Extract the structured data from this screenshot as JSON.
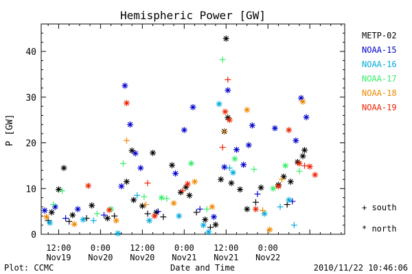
{
  "chart_data": {
    "type": "scatter",
    "title": "Hemispheric Power [GW]",
    "xlabel": "Date and Time",
    "ylabel": "P [GW]",
    "ylim": [
      0,
      46
    ],
    "yticks": [
      0,
      10,
      20,
      30,
      40
    ],
    "xlim": [
      "2010-11-19T07:00",
      "2010-11-22T22:00"
    ],
    "xticks": [
      {
        "t": "2010-11-19T12:00",
        "time": "12:00",
        "day": "Nov19"
      },
      {
        "t": "2010-11-20T00:00",
        "time": "0:00",
        "day": "Nov20"
      },
      {
        "t": "2010-11-20T12:00",
        "time": "12:00",
        "day": "Nov20"
      },
      {
        "t": "2010-11-21T00:00",
        "time": "0:00",
        "day": "Nov21"
      },
      {
        "t": "2010-11-21T12:00",
        "time": "12:00",
        "day": "Nov21"
      },
      {
        "t": "2010-11-22T00:00",
        "time": "0:00",
        "day": "Nov22"
      }
    ],
    "legend_position": "right",
    "marker_legend": [
      {
        "symbol": "+",
        "label": "south"
      },
      {
        "symbol": "*",
        "label": "north"
      }
    ],
    "series": [
      {
        "name": "METP-02",
        "color": "#000000",
        "points": [
          {
            "x": "2010-11-19T10:00",
            "y": 4.8,
            "m": "*"
          },
          {
            "x": "2010-11-19T12:00",
            "y": 9.8,
            "m": "*"
          },
          {
            "x": "2010-11-19T13:30",
            "y": 14.5,
            "m": "*"
          },
          {
            "x": "2010-11-19T16:00",
            "y": 4.2,
            "m": "*"
          },
          {
            "x": "2010-11-19T21:30",
            "y": 6.3,
            "m": "*"
          },
          {
            "x": "2010-11-20T02:00",
            "y": 3.5,
            "m": "*"
          },
          {
            "x": "2010-11-20T07:30",
            "y": 11.5,
            "m": "*"
          },
          {
            "x": "2010-11-20T09:00",
            "y": 18.3,
            "m": "*"
          },
          {
            "x": "2010-11-20T09:30",
            "y": 7.5,
            "m": "*"
          },
          {
            "x": "2010-11-20T12:00",
            "y": 6.2,
            "m": "*"
          },
          {
            "x": "2010-11-20T15:00",
            "y": 17.8,
            "m": "*"
          },
          {
            "x": "2010-11-20T16:00",
            "y": 4.8,
            "m": "*"
          },
          {
            "x": "2010-11-20T20:30",
            "y": 15.1,
            "m": "*"
          },
          {
            "x": "2010-11-20T23:00",
            "y": 9.2,
            "m": "*"
          },
          {
            "x": "2010-11-21T00:30",
            "y": 10.3,
            "m": "*"
          },
          {
            "x": "2010-11-21T01:30",
            "y": 8.5,
            "m": "*"
          },
          {
            "x": "2010-11-21T06:00",
            "y": 3.2,
            "m": "*"
          },
          {
            "x": "2010-11-21T09:00",
            "y": 2.1,
            "m": "*"
          },
          {
            "x": "2010-11-21T10:30",
            "y": 12.0,
            "m": "*"
          },
          {
            "x": "2010-11-21T11:30",
            "y": 22.5,
            "m": "*"
          },
          {
            "x": "2010-11-21T12:00",
            "y": 42.8,
            "m": "*"
          },
          {
            "x": "2010-11-21T12:30",
            "y": 25.5,
            "m": "*"
          },
          {
            "x": "2010-11-21T13:30",
            "y": 11.2,
            "m": "*"
          },
          {
            "x": "2010-11-21T16:00",
            "y": 9.8,
            "m": "*"
          },
          {
            "x": "2010-11-21T18:00",
            "y": 5.5,
            "m": "*"
          },
          {
            "x": "2010-11-21T22:00",
            "y": 10.2,
            "m": "*"
          },
          {
            "x": "2010-11-22T03:00",
            "y": 10.8,
            "m": "*"
          },
          {
            "x": "2010-11-22T04:30",
            "y": 12.6,
            "m": "*"
          },
          {
            "x": "2010-11-22T06:30",
            "y": 11.5,
            "m": "*"
          },
          {
            "x": "2010-11-22T08:30",
            "y": 15.8,
            "m": "*"
          },
          {
            "x": "2010-11-22T10:00",
            "y": 17.1,
            "m": "*"
          },
          {
            "x": "2010-11-22T10:30",
            "y": 18.4,
            "m": "*"
          },
          {
            "x": "2010-11-19T09:00",
            "y": 3.0,
            "m": "+"
          },
          {
            "x": "2010-11-19T15:00",
            "y": 2.8,
            "m": "+"
          },
          {
            "x": "2010-11-19T20:00",
            "y": 3.5,
            "m": "+"
          },
          {
            "x": "2010-11-20T04:00",
            "y": 4.0,
            "m": "+"
          },
          {
            "x": "2010-11-20T13:30",
            "y": 4.5,
            "m": "+"
          },
          {
            "x": "2010-11-20T18:00",
            "y": 3.8,
            "m": "+"
          },
          {
            "x": "2010-11-21T03:30",
            "y": 4.8,
            "m": "+"
          },
          {
            "x": "2010-11-21T07:30",
            "y": 1.5,
            "m": "+"
          },
          {
            "x": "2010-11-21T20:30",
            "y": 7.0,
            "m": "+"
          },
          {
            "x": "2010-11-22T05:30",
            "y": 6.5,
            "m": "+"
          }
        ]
      },
      {
        "name": "NOAA-15",
        "color": "#0000cc",
        "points": [
          {
            "x": "2010-11-19T08:00",
            "y": 5.2,
            "m": "*"
          },
          {
            "x": "2010-11-19T11:00",
            "y": 6.0,
            "m": "*"
          },
          {
            "x": "2010-11-19T17:30",
            "y": 5.5,
            "m": "*"
          },
          {
            "x": "2010-11-20T06:00",
            "y": 10.5,
            "m": "*"
          },
          {
            "x": "2010-11-20T07:00",
            "y": 32.5,
            "m": "*"
          },
          {
            "x": "2010-11-20T08:30",
            "y": 24.0,
            "m": "*"
          },
          {
            "x": "2010-11-20T10:00",
            "y": 17.7,
            "m": "*"
          },
          {
            "x": "2010-11-20T11:30",
            "y": 14.5,
            "m": "*"
          },
          {
            "x": "2010-11-20T21:30",
            "y": 13.3,
            "m": "*"
          },
          {
            "x": "2010-11-21T00:00",
            "y": 22.8,
            "m": "*"
          },
          {
            "x": "2010-11-21T02:30",
            "y": 27.8,
            "m": "*"
          },
          {
            "x": "2010-11-21T11:30",
            "y": 14.7,
            "m": "*"
          },
          {
            "x": "2010-11-21T12:30",
            "y": 31.5,
            "m": "*"
          },
          {
            "x": "2010-11-21T15:00",
            "y": 18.5,
            "m": "*"
          },
          {
            "x": "2010-11-21T17:00",
            "y": 15.2,
            "m": "*"
          },
          {
            "x": "2010-11-21T18:30",
            "y": 19.5,
            "m": "*"
          },
          {
            "x": "2010-11-21T19:30",
            "y": 23.8,
            "m": "*"
          },
          {
            "x": "2010-11-22T02:00",
            "y": 23.2,
            "m": "*"
          },
          {
            "x": "2010-11-22T08:00",
            "y": 20.5,
            "m": "*"
          },
          {
            "x": "2010-11-22T09:30",
            "y": 29.8,
            "m": "*"
          },
          {
            "x": "2010-11-22T11:00",
            "y": 25.6,
            "m": "*"
          },
          {
            "x": "2010-11-21T08:30",
            "y": 3.8,
            "m": "*"
          },
          {
            "x": "2010-11-19T14:00",
            "y": 3.5,
            "m": "+"
          },
          {
            "x": "2010-11-20T01:00",
            "y": 4.2,
            "m": "+"
          },
          {
            "x": "2010-11-20T16:30",
            "y": 5.0,
            "m": "+"
          },
          {
            "x": "2010-11-21T04:30",
            "y": 5.5,
            "m": "+"
          },
          {
            "x": "2010-11-21T21:00",
            "y": 8.8,
            "m": "+"
          },
          {
            "x": "2010-11-22T07:00",
            "y": 7.2,
            "m": "+"
          }
        ]
      },
      {
        "name": "NOAA-16",
        "color": "#00aadd",
        "points": [
          {
            "x": "2010-11-19T09:30",
            "y": 2.5,
            "m": "*"
          },
          {
            "x": "2010-11-19T19:00",
            "y": 3.2,
            "m": "*"
          },
          {
            "x": "2010-11-20T05:00",
            "y": 0.2,
            "m": "*"
          },
          {
            "x": "2010-11-20T14:00",
            "y": 3.0,
            "m": "*"
          },
          {
            "x": "2010-11-20T22:30",
            "y": 4.0,
            "m": "*"
          },
          {
            "x": "2010-11-21T05:30",
            "y": 2.0,
            "m": "*"
          },
          {
            "x": "2010-11-21T07:00",
            "y": 0.5,
            "m": "*"
          },
          {
            "x": "2010-11-21T10:00",
            "y": 28.5,
            "m": "*"
          },
          {
            "x": "2010-11-21T14:00",
            "y": 13.5,
            "m": "*"
          },
          {
            "x": "2010-11-21T23:00",
            "y": 4.5,
            "m": "*"
          },
          {
            "x": "2010-11-22T06:00",
            "y": 7.5,
            "m": "*"
          },
          {
            "x": "2010-11-22T07:30",
            "y": 2.0,
            "m": "+"
          },
          {
            "x": "2010-11-20T10:30",
            "y": 8.5,
            "m": "+"
          },
          {
            "x": "2010-11-19T22:00",
            "y": 3.0,
            "m": "+"
          },
          {
            "x": "2010-11-21T13:00",
            "y": 14.5,
            "m": "+"
          },
          {
            "x": "2010-11-22T03:30",
            "y": 6.0,
            "m": "+"
          }
        ]
      },
      {
        "name": "NOAA-17",
        "color": "#33ee66",
        "points": [
          {
            "x": "2010-11-19T10:30",
            "y": 6.5,
            "m": "+"
          },
          {
            "x": "2010-11-19T13:00",
            "y": 9.5,
            "m": "+"
          },
          {
            "x": "2010-11-19T23:00",
            "y": 4.5,
            "m": "+"
          },
          {
            "x": "2010-11-20T06:30",
            "y": 15.5,
            "m": "+"
          },
          {
            "x": "2010-11-20T12:30",
            "y": 8.2,
            "m": "+"
          },
          {
            "x": "2010-11-20T19:00",
            "y": 7.8,
            "m": "+"
          },
          {
            "x": "2010-11-21T02:00",
            "y": 15.5,
            "m": "*"
          },
          {
            "x": "2010-11-21T06:30",
            "y": 5.5,
            "m": "+"
          },
          {
            "x": "2010-11-21T11:00",
            "y": 38.2,
            "m": "+"
          },
          {
            "x": "2010-11-21T14:30",
            "y": 16.5,
            "m": "*"
          },
          {
            "x": "2010-11-21T20:00",
            "y": 14.2,
            "m": "+"
          },
          {
            "x": "2010-11-22T01:30",
            "y": 10.0,
            "m": "*"
          },
          {
            "x": "2010-11-22T05:00",
            "y": 15.0,
            "m": "*"
          },
          {
            "x": "2010-11-22T09:00",
            "y": 13.8,
            "m": "+"
          },
          {
            "x": "2010-11-20T03:00",
            "y": 5.5,
            "m": "*"
          },
          {
            "x": "2010-11-20T17:30",
            "y": 8.0,
            "m": "*"
          }
        ]
      },
      {
        "name": "NOAA-18",
        "color": "#ee8800",
        "points": [
          {
            "x": "2010-11-19T08:30",
            "y": 3.8,
            "m": "*"
          },
          {
            "x": "2010-11-19T16:30",
            "y": 2.2,
            "m": "*"
          },
          {
            "x": "2010-11-20T04:30",
            "y": 3.0,
            "m": "*"
          },
          {
            "x": "2010-11-20T07:30",
            "y": 20.5,
            "m": "+"
          },
          {
            "x": "2010-11-20T13:00",
            "y": 6.5,
            "m": "+"
          },
          {
            "x": "2010-11-20T21:00",
            "y": 6.8,
            "m": "*"
          },
          {
            "x": "2010-11-21T03:00",
            "y": 11.5,
            "m": "*"
          },
          {
            "x": "2010-11-21T08:00",
            "y": 6.0,
            "m": "*"
          },
          {
            "x": "2010-11-21T11:30",
            "y": 22.5,
            "m": "+"
          },
          {
            "x": "2010-11-21T18:00",
            "y": 27.2,
            "m": "*"
          },
          {
            "x": "2010-11-22T00:30",
            "y": 1.0,
            "m": "*"
          },
          {
            "x": "2010-11-22T10:00",
            "y": 29.0,
            "m": "*"
          },
          {
            "x": "2010-11-22T04:00",
            "y": 12.0,
            "m": "+"
          },
          {
            "x": "2010-11-21T22:30",
            "y": 5.2,
            "m": "+"
          }
        ]
      },
      {
        "name": "NOAA-19",
        "color": "#ee2200",
        "points": [
          {
            "x": "2010-11-19T20:30",
            "y": 10.6,
            "m": "*"
          },
          {
            "x": "2010-11-20T02:30",
            "y": 5.3,
            "m": "*"
          },
          {
            "x": "2010-11-20T07:30",
            "y": 28.7,
            "m": "*"
          },
          {
            "x": "2010-11-20T13:30",
            "y": 11.2,
            "m": "+"
          },
          {
            "x": "2010-11-20T15:30",
            "y": 4.0,
            "m": "*"
          },
          {
            "x": "2010-11-20T23:30",
            "y": 9.5,
            "m": "+"
          },
          {
            "x": "2010-11-21T01:00",
            "y": 11.0,
            "m": "*"
          },
          {
            "x": "2010-11-21T11:00",
            "y": 19.0,
            "m": "+"
          },
          {
            "x": "2010-11-21T11:45",
            "y": 26.8,
            "m": "*"
          },
          {
            "x": "2010-11-21T12:30",
            "y": 33.8,
            "m": "+"
          },
          {
            "x": "2010-11-21T13:00",
            "y": 25.0,
            "m": "*"
          },
          {
            "x": "2010-11-21T20:30",
            "y": 5.5,
            "m": "*"
          },
          {
            "x": "2010-11-22T03:00",
            "y": 10.5,
            "m": "*"
          },
          {
            "x": "2010-11-22T06:00",
            "y": 22.8,
            "m": "*"
          },
          {
            "x": "2010-11-22T09:00",
            "y": 15.5,
            "m": "*"
          },
          {
            "x": "2010-11-22T10:30",
            "y": 15.0,
            "m": "+"
          },
          {
            "x": "2010-11-22T12:00",
            "y": 14.8,
            "m": "*"
          },
          {
            "x": "2010-11-22T13:30",
            "y": 13.0,
            "m": "*"
          }
        ]
      }
    ]
  },
  "footer": {
    "left": "Plot: CCMC",
    "right": "2010/11/22 10:46:06"
  }
}
